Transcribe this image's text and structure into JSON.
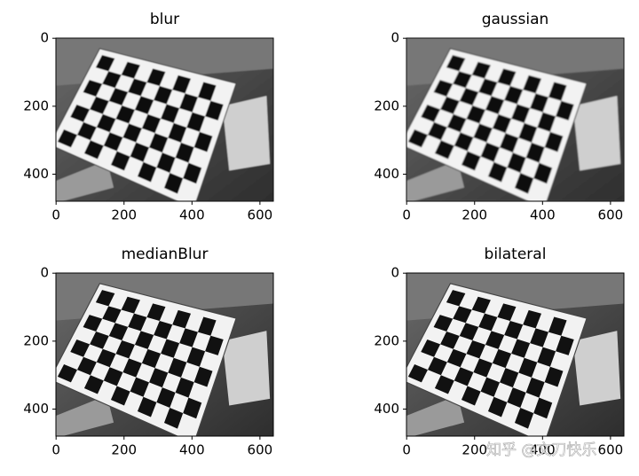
{
  "chart_data": [
    {
      "type": "image",
      "title": "blur",
      "xlim": [
        -0.5,
        639.5
      ],
      "ylim": [
        479.5,
        -0.5
      ],
      "xticks": [
        0,
        200,
        400,
        600
      ],
      "yticks": [
        0,
        200,
        400
      ]
    },
    {
      "type": "image",
      "title": "gaussian",
      "xlim": [
        -0.5,
        639.5
      ],
      "ylim": [
        479.5,
        -0.5
      ],
      "xticks": [
        0,
        200,
        400,
        600
      ],
      "yticks": [
        0,
        200,
        400
      ]
    },
    {
      "type": "image",
      "title": "medianBlur",
      "xlim": [
        -0.5,
        639.5
      ],
      "ylim": [
        479.5,
        -0.5
      ],
      "xticks": [
        0,
        200,
        400,
        600
      ],
      "yticks": [
        0,
        200,
        400
      ]
    },
    {
      "type": "image",
      "title": "bilateral",
      "xlim": [
        -0.5,
        639.5
      ],
      "ylim": [
        479.5,
        -0.5
      ],
      "xticks": [
        0,
        200,
        400,
        600
      ],
      "yticks": [
        0,
        200,
        400
      ]
    }
  ],
  "watermark": "知乎 @文刀快乐"
}
